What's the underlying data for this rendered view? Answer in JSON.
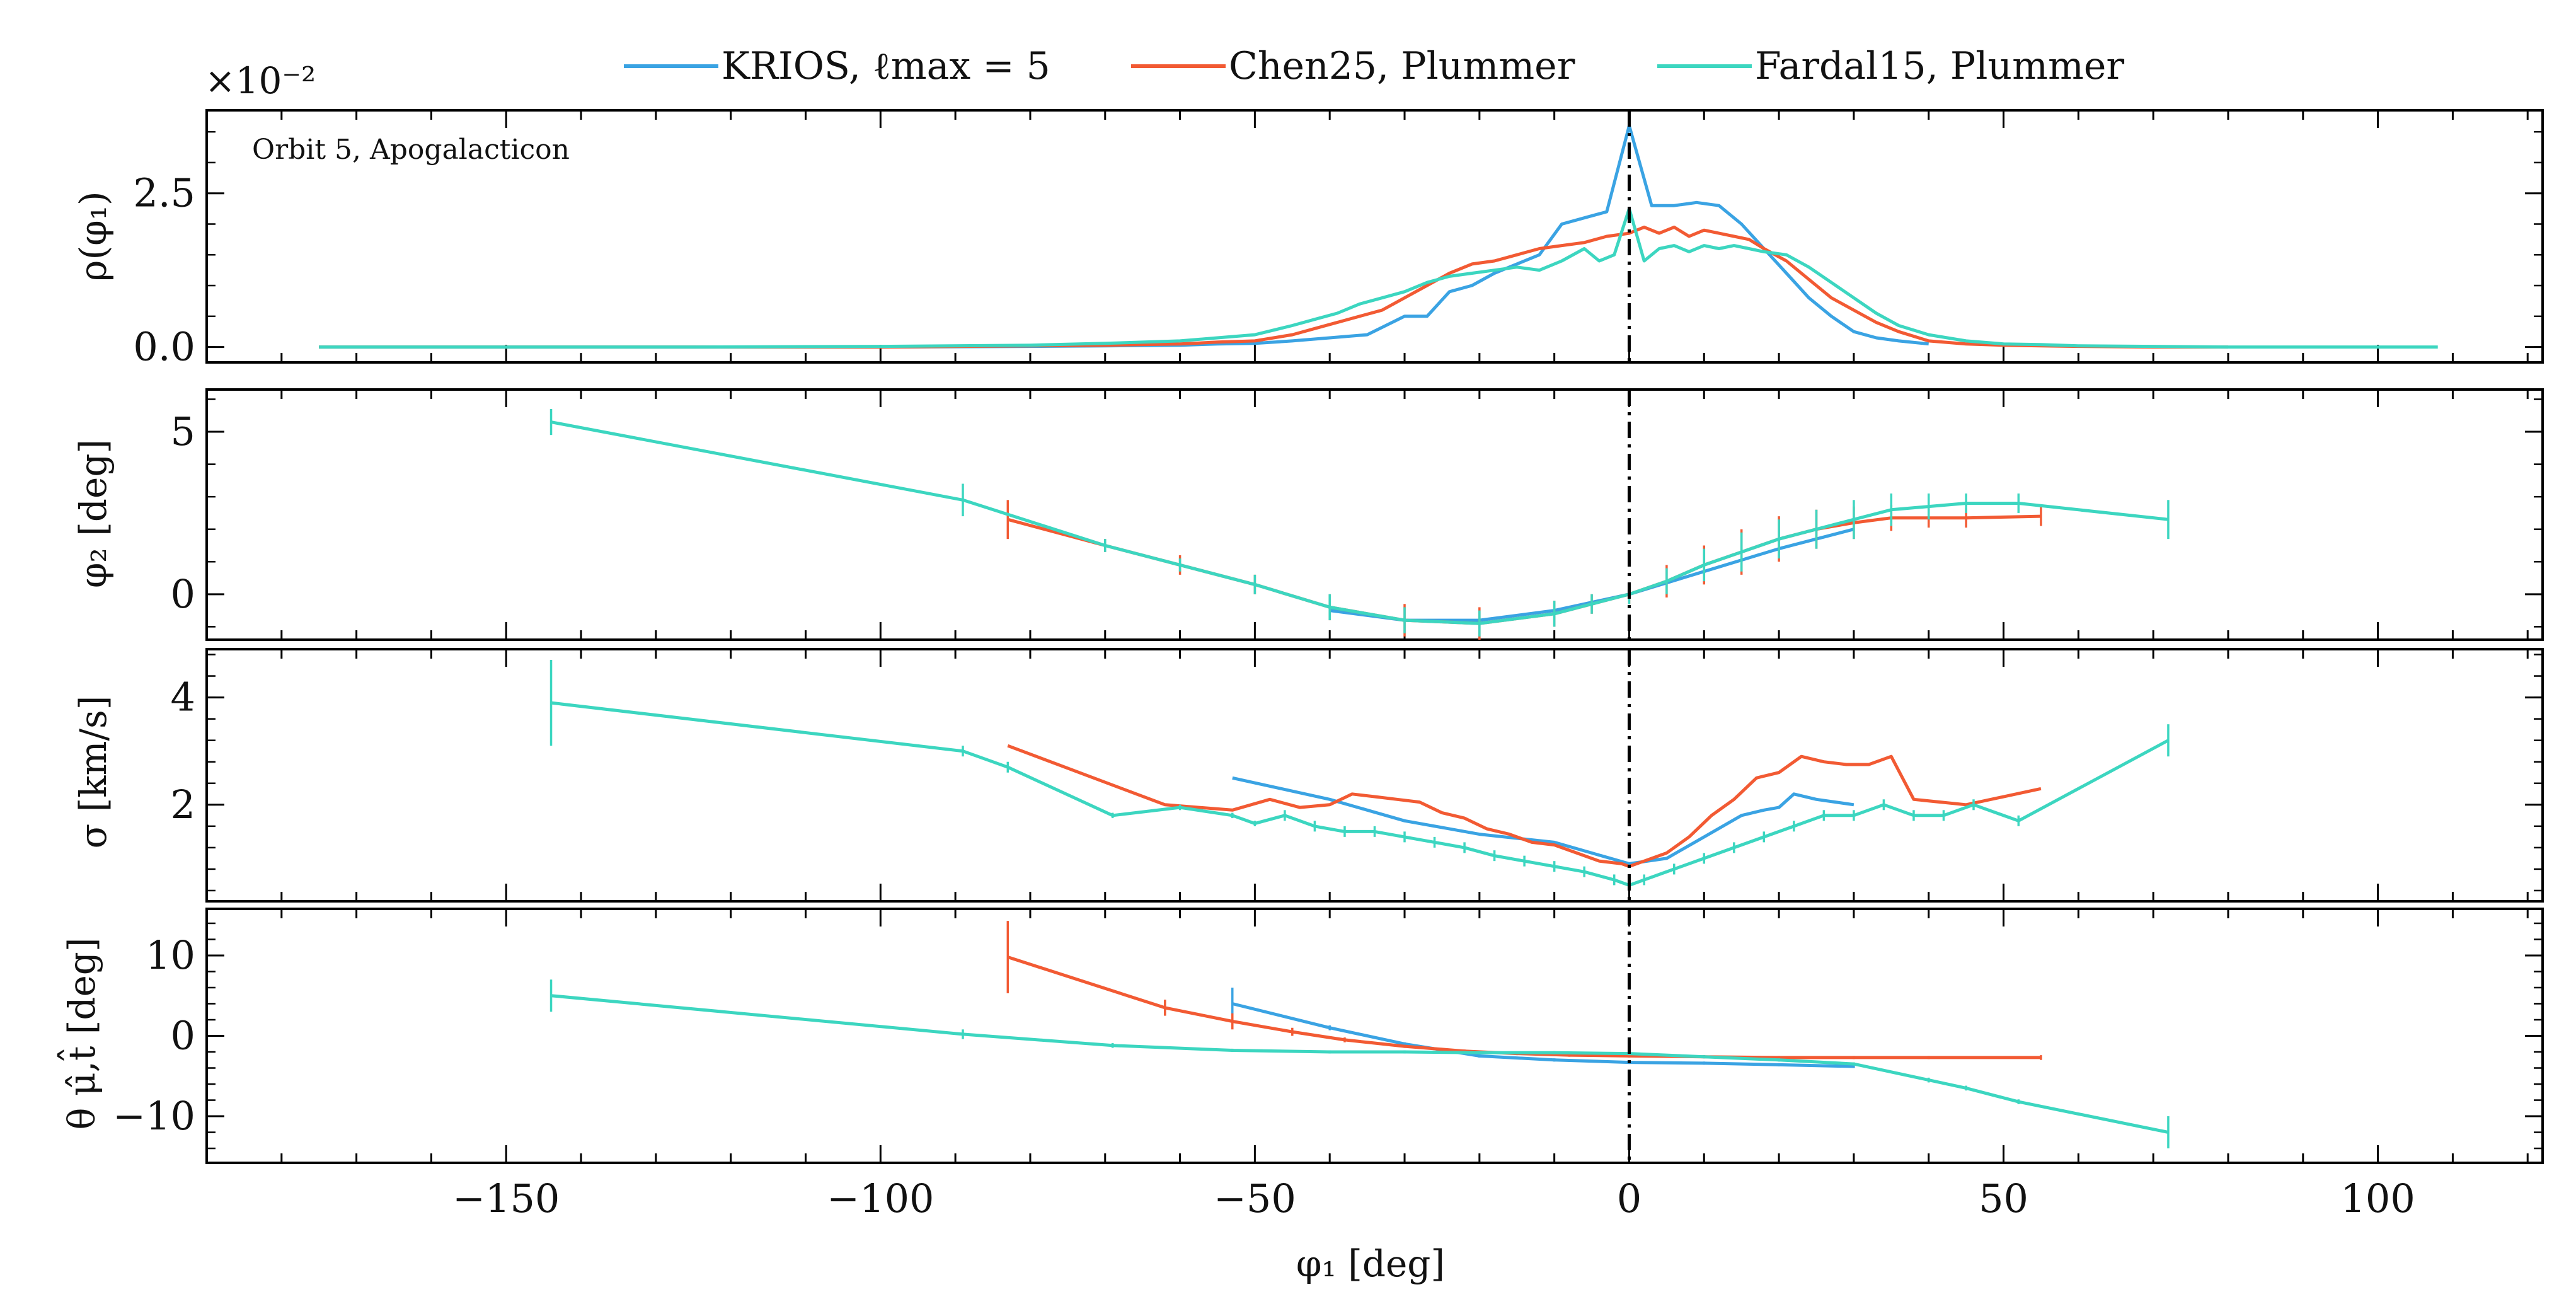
{
  "legend": [
    {
      "label": "KRIOS, ℓmax = 5",
      "color": "#3aa3e3"
    },
    {
      "label": "Chen25, Plummer",
      "color": "#f25a33"
    },
    {
      "label": "Fardal15, Plummer",
      "color": "#3cd6c0"
    }
  ],
  "colors": {
    "krios": "#3aa3e3",
    "chen": "#f25a33",
    "fardal": "#3cd6c0",
    "axes": "#000000"
  },
  "chart_data": [
    {
      "type": "line",
      "panel": "density",
      "title": "",
      "annotation": "Orbit 5, Apogalacticon",
      "scale_note": "×10⁻²",
      "ylabel": "ρ(φ₁)",
      "xlabel": "",
      "xlim": [
        -190,
        122
      ],
      "ylim": [
        -0.25,
        3.85
      ],
      "yticks": [
        0.0,
        2.5
      ],
      "ytick_labels": [
        "0.0",
        "2.5"
      ],
      "vline_x": 0,
      "series": [
        {
          "name": "KRIOS",
          "x": [
            -175,
            -150,
            -125,
            -100,
            -80,
            -70,
            -60,
            -55,
            -50,
            -45,
            -40,
            -35,
            -30,
            -27,
            -24,
            -21,
            -18,
            -15,
            -12,
            -9,
            -6,
            -3,
            0,
            3,
            6,
            9,
            12,
            15,
            18,
            21,
            24,
            27,
            30,
            33,
            36,
            40
          ],
          "y": [
            0,
            0,
            0,
            0,
            0.01,
            0.02,
            0.03,
            0.05,
            0.06,
            0.1,
            0.15,
            0.2,
            0.5,
            0.5,
            0.9,
            1.0,
            1.2,
            1.35,
            1.5,
            2.0,
            2.1,
            2.2,
            3.6,
            2.3,
            2.3,
            2.35,
            2.3,
            2.0,
            1.6,
            1.2,
            0.8,
            0.5,
            0.25,
            0.15,
            0.1,
            0.05
          ]
        },
        {
          "name": "Chen25",
          "x": [
            -175,
            -150,
            -125,
            -100,
            -80,
            -70,
            -60,
            -55,
            -50,
            -45,
            -42,
            -39,
            -36,
            -33,
            -30,
            -27,
            -24,
            -21,
            -18,
            -15,
            -12,
            -9,
            -6,
            -3,
            0,
            2,
            4,
            6,
            8,
            10,
            12,
            14,
            16,
            18,
            21,
            24,
            27,
            30,
            33,
            36,
            40,
            45,
            50,
            55,
            60,
            70,
            80
          ],
          "y": [
            0,
            0,
            0,
            0,
            0.02,
            0.03,
            0.05,
            0.08,
            0.1,
            0.2,
            0.3,
            0.4,
            0.5,
            0.6,
            0.8,
            1.0,
            1.2,
            1.35,
            1.4,
            1.5,
            1.6,
            1.65,
            1.7,
            1.8,
            1.85,
            1.95,
            1.85,
            1.95,
            1.8,
            1.9,
            1.85,
            1.8,
            1.75,
            1.6,
            1.4,
            1.1,
            0.8,
            0.6,
            0.4,
            0.25,
            0.1,
            0.05,
            0.03,
            0.02,
            0.01,
            0,
            0
          ]
        },
        {
          "name": "Fardal15",
          "x": [
            -175,
            -150,
            -125,
            -100,
            -80,
            -70,
            -60,
            -55,
            -50,
            -45,
            -42,
            -39,
            -36,
            -33,
            -30,
            -27,
            -24,
            -21,
            -18,
            -15,
            -12,
            -9,
            -6,
            -4,
            -2,
            0,
            2,
            4,
            6,
            8,
            10,
            12,
            14,
            16,
            18,
            21,
            24,
            27,
            30,
            33,
            36,
            40,
            45,
            50,
            55,
            60,
            70,
            80,
            90,
            100,
            108
          ],
          "y": [
            0,
            0,
            0,
            0.01,
            0.03,
            0.06,
            0.1,
            0.15,
            0.2,
            0.35,
            0.45,
            0.55,
            0.7,
            0.8,
            0.9,
            1.05,
            1.15,
            1.2,
            1.25,
            1.3,
            1.25,
            1.4,
            1.6,
            1.4,
            1.5,
            2.25,
            1.4,
            1.6,
            1.65,
            1.55,
            1.65,
            1.6,
            1.65,
            1.6,
            1.55,
            1.5,
            1.3,
            1.05,
            0.8,
            0.55,
            0.35,
            0.2,
            0.1,
            0.05,
            0.04,
            0.02,
            0.01,
            0,
            0,
            0,
            0
          ]
        }
      ]
    },
    {
      "type": "line",
      "panel": "phi2",
      "title": "",
      "ylabel": "φ₂ [deg]",
      "xlabel": "",
      "xlim": [
        -190,
        122
      ],
      "ylim": [
        -1.4,
        6.3
      ],
      "yticks": [
        0,
        5
      ],
      "ytick_labels": [
        "0",
        "5"
      ],
      "vline_x": 0,
      "series": [
        {
          "name": "KRIOS",
          "x": [
            -40,
            -30,
            -20,
            -10,
            0,
            10,
            20,
            30
          ],
          "y": [
            -0.5,
            -0.8,
            -0.8,
            -0.5,
            0,
            0.7,
            1.4,
            2.0
          ]
        },
        {
          "name": "Chen25",
          "x": [
            -83,
            -70,
            -60,
            -50,
            -40,
            -30,
            -20,
            -10,
            -5,
            0,
            5,
            10,
            15,
            20,
            25,
            30,
            35,
            40,
            45,
            55
          ],
          "y": [
            2.3,
            1.5,
            0.9,
            0.3,
            -0.4,
            -0.8,
            -0.9,
            -0.6,
            -0.3,
            0,
            0.4,
            0.9,
            1.3,
            1.7,
            2.0,
            2.2,
            2.35,
            2.35,
            2.35,
            2.4
          ],
          "err": [
            0.6,
            0.2,
            0.3,
            0.3,
            0.4,
            0.5,
            0.5,
            0.4,
            0.3,
            0.3,
            0.5,
            0.6,
            0.7,
            0.7,
            0.6,
            0.5,
            0.4,
            0.3,
            0.3,
            0.3
          ]
        },
        {
          "name": "Fardal15",
          "x": [
            -144,
            -89,
            -70,
            -60,
            -50,
            -40,
            -30,
            -20,
            -10,
            -5,
            0,
            5,
            10,
            15,
            20,
            25,
            30,
            35,
            40,
            45,
            52,
            72
          ],
          "y": [
            5.3,
            2.9,
            1.5,
            0.9,
            0.3,
            -0.4,
            -0.8,
            -0.9,
            -0.6,
            -0.3,
            0,
            0.4,
            0.9,
            1.3,
            1.7,
            2.0,
            2.3,
            2.6,
            2.7,
            2.8,
            2.8,
            2.3
          ],
          "err": [
            0.4,
            0.5,
            0.2,
            0.2,
            0.3,
            0.4,
            0.4,
            0.4,
            0.4,
            0.3,
            0.3,
            0.4,
            0.5,
            0.6,
            0.6,
            0.6,
            0.6,
            0.5,
            0.4,
            0.3,
            0.3,
            0.6
          ]
        }
      ]
    },
    {
      "type": "line",
      "panel": "sigma",
      "title": "",
      "ylabel": "σ [km/s]",
      "xlabel": "",
      "xlim": [
        -190,
        122
      ],
      "ylim": [
        0.2,
        4.9
      ],
      "yticks": [
        2,
        4
      ],
      "ytick_labels": [
        "2",
        "4"
      ],
      "vline_x": 0,
      "series": [
        {
          "name": "KRIOS",
          "x": [
            -53,
            -40,
            -30,
            -20,
            -10,
            -5,
            0,
            5,
            10,
            15,
            18,
            20,
            22,
            25,
            30
          ],
          "y": [
            2.5,
            2.1,
            1.7,
            1.45,
            1.3,
            1.1,
            0.9,
            1.0,
            1.4,
            1.8,
            1.9,
            1.95,
            2.2,
            2.1,
            2.0
          ]
        },
        {
          "name": "Chen25",
          "x": [
            -83,
            -62,
            -53,
            -48,
            -44,
            -40,
            -37,
            -34,
            -31,
            -28,
            -25,
            -22,
            -19,
            -16,
            -13,
            -10,
            -7,
            -4,
            -1,
            0,
            2,
            5,
            8,
            11,
            14,
            17,
            20,
            23,
            26,
            29,
            32,
            35,
            38,
            45,
            55
          ],
          "y": [
            3.1,
            2.0,
            1.9,
            2.1,
            1.95,
            2.0,
            2.2,
            2.15,
            2.1,
            2.05,
            1.85,
            1.75,
            1.55,
            1.45,
            1.3,
            1.25,
            1.1,
            0.95,
            0.9,
            0.85,
            0.95,
            1.1,
            1.4,
            1.8,
            2.1,
            2.5,
            2.6,
            2.9,
            2.8,
            2.75,
            2.75,
            2.9,
            2.1,
            2.0,
            2.3
          ]
        },
        {
          "name": "Fardal15",
          "x": [
            -144,
            -89,
            -83,
            -69,
            -60,
            -53,
            -50,
            -46,
            -42,
            -38,
            -34,
            -30,
            -26,
            -22,
            -18,
            -14,
            -10,
            -6,
            -2,
            0,
            2,
            6,
            10,
            14,
            18,
            22,
            26,
            30,
            34,
            38,
            42,
            46,
            52,
            72
          ],
          "y": [
            3.9,
            3.0,
            2.7,
            1.8,
            1.95,
            1.8,
            1.65,
            1.8,
            1.6,
            1.5,
            1.5,
            1.4,
            1.3,
            1.2,
            1.05,
            0.95,
            0.85,
            0.75,
            0.6,
            0.5,
            0.6,
            0.8,
            1.0,
            1.2,
            1.4,
            1.6,
            1.8,
            1.8,
            2.0,
            1.8,
            1.8,
            2.0,
            1.7,
            3.2
          ],
          "err": [
            0.8,
            0.1,
            0.1,
            0.05,
            0.05,
            0.05,
            0.05,
            0.1,
            0.1,
            0.1,
            0.1,
            0.1,
            0.1,
            0.1,
            0.1,
            0.1,
            0.1,
            0.1,
            0.1,
            0.1,
            0.1,
            0.1,
            0.1,
            0.1,
            0.1,
            0.1,
            0.1,
            0.1,
            0.1,
            0.1,
            0.1,
            0.1,
            0.1,
            0.3
          ]
        }
      ]
    },
    {
      "type": "line",
      "panel": "theta",
      "title": "",
      "ylabel": "θ μ̂,t̂ [deg]",
      "xlabel": "φ₁ [deg]",
      "xlim": [
        -190,
        122
      ],
      "ylim": [
        -15.8,
        15.8
      ],
      "yticks": [
        -10,
        0,
        10
      ],
      "ytick_labels": [
        "−10",
        "0",
        "10"
      ],
      "xticks": [
        -150,
        -100,
        -50,
        0,
        50,
        100
      ],
      "xtick_labels": [
        "−150",
        "−100",
        "−50",
        "0",
        "50",
        "100"
      ],
      "vline_x": 0,
      "series": [
        {
          "name": "KRIOS",
          "x": [
            -53,
            -40,
            -30,
            -20,
            -10,
            0,
            10,
            20,
            30
          ],
          "y": [
            4.0,
            1.0,
            -1.0,
            -2.5,
            -3.0,
            -3.3,
            -3.4,
            -3.6,
            -3.8
          ],
          "err": [
            2.0,
            0.3,
            0.2,
            0.2,
            0.2,
            0.2,
            0.2,
            0.2,
            0.2
          ]
        },
        {
          "name": "Chen25",
          "x": [
            -83,
            -62,
            -53,
            -45,
            -38,
            -30,
            -22,
            -15,
            -8,
            0,
            10,
            20,
            30,
            40,
            55
          ],
          "y": [
            9.8,
            3.5,
            1.8,
            0.5,
            -0.5,
            -1.3,
            -1.9,
            -2.2,
            -2.4,
            -2.5,
            -2.6,
            -2.7,
            -2.7,
            -2.7,
            -2.7
          ],
          "err": [
            4.5,
            1.0,
            1.0,
            0.5,
            0.3,
            0.2,
            0.2,
            0.2,
            0.2,
            0.2,
            0.2,
            0.2,
            0.2,
            0.2,
            0.3
          ]
        },
        {
          "name": "Fardal15",
          "x": [
            -144,
            -89,
            -69,
            -53,
            -40,
            -30,
            -20,
            -10,
            0,
            10,
            20,
            30,
            40,
            45,
            52,
            72
          ],
          "y": [
            5.0,
            0.2,
            -1.2,
            -1.8,
            -2.0,
            -2.0,
            -2.1,
            -2.1,
            -2.2,
            -2.6,
            -3.0,
            -3.5,
            -5.5,
            -6.5,
            -8.2,
            -12.0
          ],
          "err": [
            2.0,
            0.6,
            0.3,
            0.2,
            0.2,
            0.2,
            0.2,
            0.2,
            0.2,
            0.2,
            0.2,
            0.2,
            0.3,
            0.3,
            0.3,
            2.0
          ]
        }
      ]
    }
  ]
}
